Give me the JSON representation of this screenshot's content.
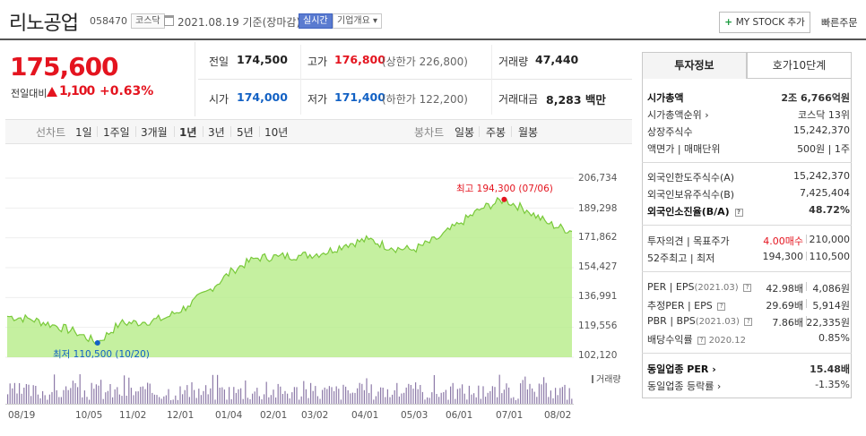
{
  "header": {
    "company_name": "리노공업",
    "code": "058470",
    "market_badge": "코스닥",
    "date_label": "2021.08.19 기준(장마감)",
    "realtime_label": "실시간",
    "overview_label": "기업개요",
    "mystock_label": "MY STOCK 추가",
    "quick_order_label": "빠른주문"
  },
  "price": {
    "current": "175,600",
    "compare_label": "전일대비",
    "change": "1,100",
    "change_pct": "+0.63%"
  },
  "summary": {
    "prev_close_label": "전일",
    "prev_close": "174,500",
    "high_label": "고가",
    "high": "176,800",
    "upper_limit": "(상한가 226,800)",
    "volume_label": "거래량",
    "volume": "47,440",
    "open_label": "시가",
    "open": "174,000",
    "low_label": "저가",
    "low": "171,400",
    "lower_limit": "(하한가 122,200)",
    "amount_label": "거래대금",
    "amount": "8,283 백만"
  },
  "period_tabs": {
    "line_caption": "선차트",
    "line_items": [
      "1일",
      "1주일",
      "3개월",
      "1년",
      "3년",
      "5년",
      "10년"
    ],
    "selected": "1년",
    "candle_caption": "봉차트",
    "candle_items": [
      "일봉",
      "주봉",
      "월봉"
    ]
  },
  "right_panel": {
    "tab_active": "투자정보",
    "tab_inactive": "호가10단계",
    "market_cap_label": "시가총액",
    "market_cap": "2조 6,766억원",
    "market_cap_rank_label": "시가총액순위",
    "market_cap_rank": "코스닥 13위",
    "shares_label": "상장주식수",
    "shares": "15,242,370",
    "par_label": "액면가 | 매매단위",
    "par": "500원 | 1주",
    "foreign_limit_label": "외국인한도주식수(A)",
    "foreign_limit": "15,242,370",
    "foreign_hold_label": "외국인보유주식수(B)",
    "foreign_hold": "7,425,404",
    "foreign_ratio_label": "외국인소진율(B/A)",
    "foreign_ratio": "48.72%",
    "opinion_label": "투자의견 | 목표주가",
    "opinion": "4.00매수",
    "target": "210,000",
    "week52_label": "52주최고 | 최저",
    "week52_high": "194,300",
    "week52_low": "110,500",
    "per_label": "PER | EPS",
    "per_date": "(2021.03)",
    "per": "42.98배",
    "eps": "4,086원",
    "est_per_label": "추정PER | EPS",
    "est_per": "29.69배",
    "est_eps": "5,914원",
    "pbr_label": "PBR | BPS",
    "pbr_date": "(2021.03)",
    "pbr": "7.86배",
    "bps": "22,335원",
    "dividend_label": "배당수익률",
    "dividend_date": "2020.12",
    "dividend": "0.85%",
    "sector_per_label": "동일업종 PER",
    "sector_per": "15.48배",
    "sector_rate_label": "동일업종 등락률",
    "sector_rate": "-1.35%"
  },
  "chart_data": {
    "type": "area",
    "ylim": [
      102120,
      206734
    ],
    "y_ticks": [
      "206,734",
      "189,298",
      "171,862",
      "154,427",
      "136,991",
      "119,556",
      "102,120"
    ],
    "x_ticks": [
      "08/19",
      "10/05",
      "11/02",
      "12/01",
      "01/04",
      "02/01",
      "03/02",
      "04/01",
      "05/03",
      "06/01",
      "07/01",
      "08/02"
    ],
    "max_label": "최고 194,300 (07/06)",
    "min_label": "최저 110,500 (10/20)",
    "volume_label": "거래량",
    "fill_color": "#b6ec88",
    "line_color": "#79c93a",
    "series": [
      {
        "x": "08/19",
        "y": 126000
      },
      {
        "x": "09/01",
        "y": 124500
      },
      {
        "x": "09/15",
        "y": 121000
      },
      {
        "x": "10/05",
        "y": 117000
      },
      {
        "x": "10/20",
        "y": 110500
      },
      {
        "x": "11/02",
        "y": 122000
      },
      {
        "x": "11/16",
        "y": 122500
      },
      {
        "x": "12/01",
        "y": 125000
      },
      {
        "x": "12/15",
        "y": 132000
      },
      {
        "x": "01/04",
        "y": 142000
      },
      {
        "x": "01/18",
        "y": 153000
      },
      {
        "x": "02/01",
        "y": 160000
      },
      {
        "x": "02/15",
        "y": 161000
      },
      {
        "x": "03/02",
        "y": 161500
      },
      {
        "x": "03/16",
        "y": 163000
      },
      {
        "x": "04/01",
        "y": 168000
      },
      {
        "x": "04/15",
        "y": 171000
      },
      {
        "x": "05/03",
        "y": 166000
      },
      {
        "x": "05/17",
        "y": 165000
      },
      {
        "x": "06/01",
        "y": 171000
      },
      {
        "x": "06/15",
        "y": 180000
      },
      {
        "x": "07/01",
        "y": 189000
      },
      {
        "x": "07/06",
        "y": 194300
      },
      {
        "x": "07/20",
        "y": 188000
      },
      {
        "x": "08/02",
        "y": 180000
      },
      {
        "x": "08/19",
        "y": 175600
      }
    ]
  }
}
